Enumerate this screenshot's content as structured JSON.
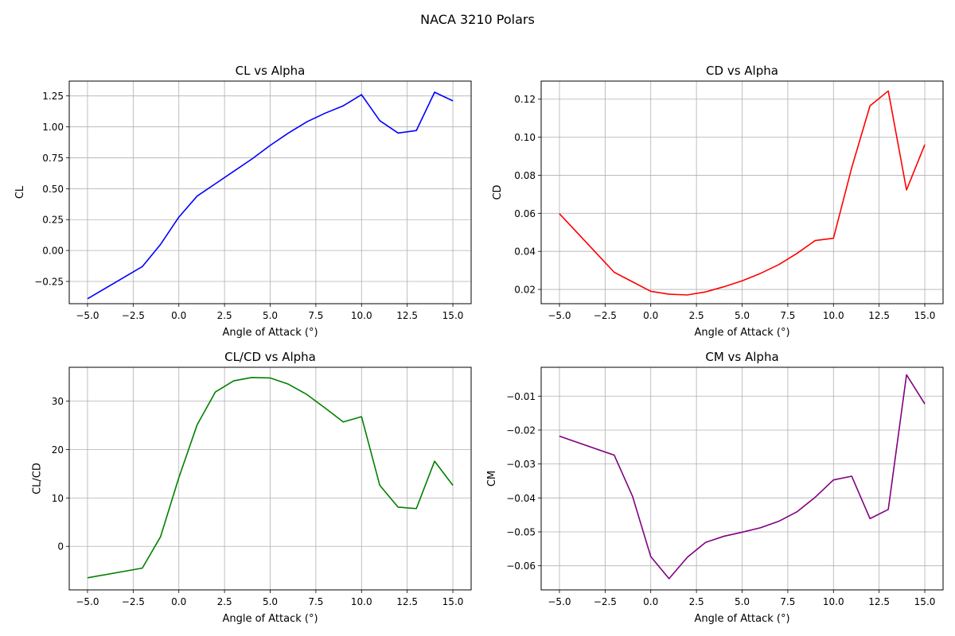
{
  "figure": {
    "title": "NACA 3210 Polars"
  },
  "chart_data": [
    {
      "type": "line",
      "title": "CL vs Alpha",
      "xlabel": "Angle of Attack (°)",
      "ylabel": "CL",
      "grid": true,
      "color": "#0000ff",
      "xlim": [
        -6,
        16
      ],
      "ylim": [
        -0.43,
        1.37
      ],
      "xticks": [
        -5.0,
        -2.5,
        0.0,
        2.5,
        5.0,
        7.5,
        10.0,
        12.5,
        15.0
      ],
      "xtick_labels": [
        "−5.0",
        "−2.5",
        "0.0",
        "2.5",
        "5.0",
        "7.5",
        "10.0",
        "12.5",
        "15.0"
      ],
      "yticks": [
        -0.25,
        0.0,
        0.25,
        0.5,
        0.75,
        1.0,
        1.25
      ],
      "ytick_labels": [
        "−0.25",
        "0.00",
        "0.25",
        "0.50",
        "0.75",
        "1.00",
        "1.25"
      ],
      "x": [
        -5,
        -2,
        -1,
        0,
        1,
        2,
        3,
        4,
        5,
        6,
        7,
        8,
        9,
        10,
        11,
        12,
        13,
        14,
        15
      ],
      "y": [
        -0.39,
        -0.13,
        0.05,
        0.27,
        0.44,
        0.54,
        0.64,
        0.74,
        0.85,
        0.95,
        1.04,
        1.11,
        1.17,
        1.26,
        1.05,
        0.95,
        0.97,
        1.28,
        1.21
      ]
    },
    {
      "type": "line",
      "title": "CD vs Alpha",
      "xlabel": "Angle of Attack (°)",
      "ylabel": "CD",
      "grid": true,
      "color": "#ff0000",
      "xlim": [
        -6,
        16
      ],
      "ylim": [
        0.0125,
        0.1295
      ],
      "xticks": [
        -5.0,
        -2.5,
        0.0,
        2.5,
        5.0,
        7.5,
        10.0,
        12.5,
        15.0
      ],
      "xtick_labels": [
        "−5.0",
        "−2.5",
        "0.0",
        "2.5",
        "5.0",
        "7.5",
        "10.0",
        "12.5",
        "15.0"
      ],
      "yticks": [
        0.02,
        0.04,
        0.06,
        0.08,
        0.1,
        0.12
      ],
      "ytick_labels": [
        "0.02",
        "0.04",
        "0.06",
        "0.08",
        "0.10",
        "0.12"
      ],
      "x": [
        -5,
        -2,
        -1,
        0,
        1,
        2,
        3,
        4,
        5,
        6,
        7,
        8,
        9,
        10,
        11,
        12,
        13,
        14,
        15
      ],
      "y": [
        0.0598,
        0.029,
        0.024,
        0.019,
        0.0175,
        0.0171,
        0.0187,
        0.0214,
        0.0245,
        0.0284,
        0.033,
        0.0389,
        0.0457,
        0.0469,
        0.084,
        0.1165,
        0.1243,
        0.0723,
        0.0961
      ]
    },
    {
      "type": "line",
      "title": "CL/CD vs Alpha",
      "xlabel": "Angle of Attack (°)",
      "ylabel": "CL/CD",
      "grid": true,
      "color": "#008000",
      "xlim": [
        -6,
        16
      ],
      "ylim": [
        -9.0,
        37.0
      ],
      "xticks": [
        -5.0,
        -2.5,
        0.0,
        2.5,
        5.0,
        7.5,
        10.0,
        12.5,
        15.0
      ],
      "xtick_labels": [
        "−5.0",
        "−2.5",
        "0.0",
        "2.5",
        "5.0",
        "7.5",
        "10.0",
        "12.5",
        "15.0"
      ],
      "yticks": [
        0,
        10,
        20,
        30
      ],
      "ytick_labels": [
        "0",
        "10",
        "20",
        "30"
      ],
      "x": [
        -5,
        -2,
        -1,
        0,
        1,
        2,
        3,
        4,
        5,
        6,
        7,
        8,
        9,
        10,
        11,
        12,
        13,
        14,
        15
      ],
      "y": [
        -6.5,
        -4.5,
        2.0,
        14.2,
        25.1,
        31.9,
        34.2,
        34.9,
        34.8,
        33.5,
        31.4,
        28.6,
        25.7,
        26.8,
        12.6,
        8.1,
        7.8,
        17.6,
        12.6
      ]
    },
    {
      "type": "line",
      "title": "CM vs Alpha",
      "xlabel": "Angle of Attack (°)",
      "ylabel": "CM",
      "grid": true,
      "color": "#800080",
      "xlim": [
        -6,
        16
      ],
      "ylim": [
        -0.0671,
        -0.0015
      ],
      "xticks": [
        -5.0,
        -2.5,
        0.0,
        2.5,
        5.0,
        7.5,
        10.0,
        12.5,
        15.0
      ],
      "xtick_labels": [
        "−5.0",
        "−2.5",
        "0.0",
        "2.5",
        "5.0",
        "7.5",
        "10.0",
        "12.5",
        "15.0"
      ],
      "yticks": [
        -0.06,
        -0.05,
        -0.04,
        -0.03,
        -0.02,
        -0.01
      ],
      "ytick_labels": [
        "−0.06",
        "−0.05",
        "−0.04",
        "−0.03",
        "−0.02",
        "−0.01"
      ],
      "x": [
        -5,
        -2,
        -1,
        0,
        1,
        2,
        3,
        4,
        5,
        6,
        7,
        8,
        9,
        10,
        11,
        12,
        13,
        14,
        15
      ],
      "y": [
        -0.0218,
        -0.0274,
        -0.0395,
        -0.0573,
        -0.0638,
        -0.0575,
        -0.0531,
        -0.0513,
        -0.0501,
        -0.0488,
        -0.0469,
        -0.0441,
        -0.0398,
        -0.0347,
        -0.0336,
        -0.0461,
        -0.0434,
        -0.0037,
        -0.0123
      ]
    }
  ]
}
